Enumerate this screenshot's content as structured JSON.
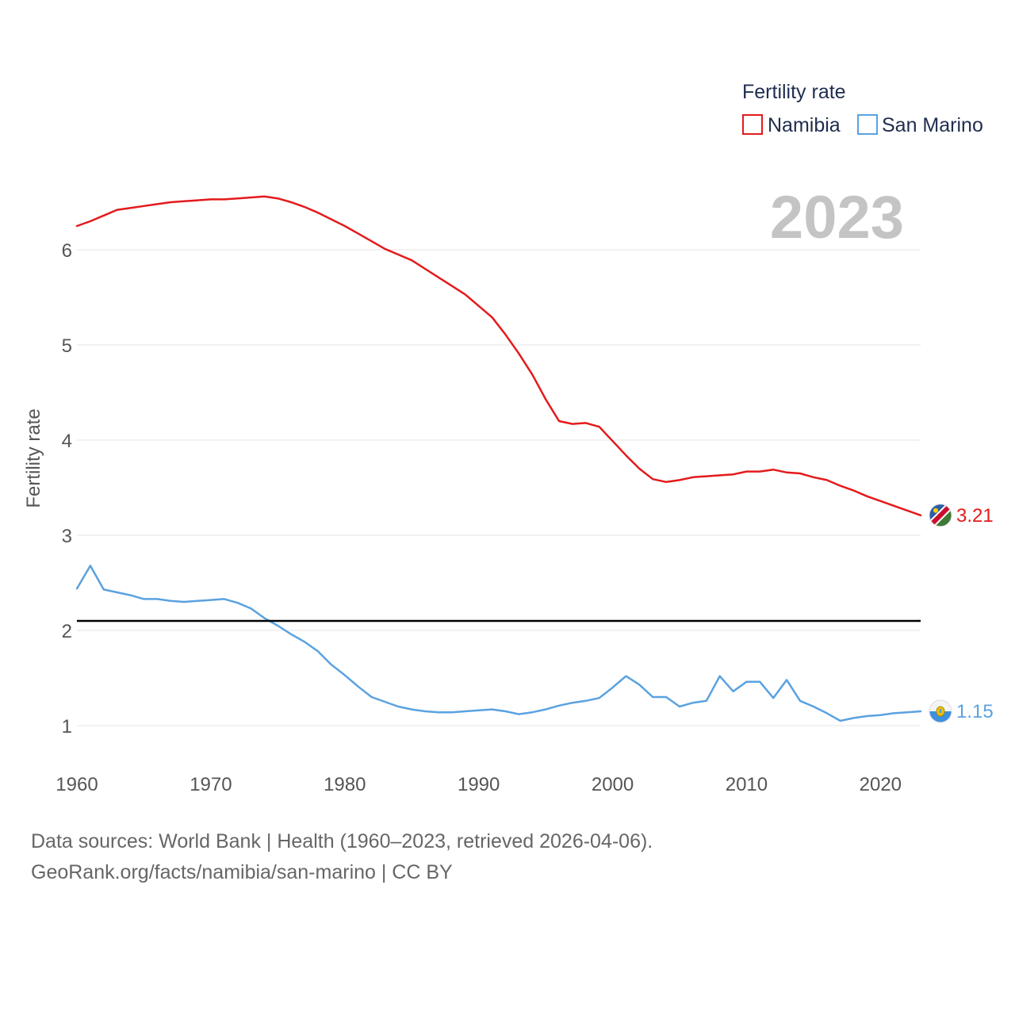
{
  "chart_data": {
    "type": "line",
    "title": "Fertility rate",
    "year_label": "2023",
    "ylabel": "Fertility rate",
    "xlabel": "",
    "xlim": [
      1960,
      2023
    ],
    "ylim": [
      0.8,
      6.9
    ],
    "x_ticks": [
      1960,
      1970,
      1980,
      1990,
      2000,
      2010,
      2020
    ],
    "x_tick_labels": [
      "1960",
      "1970",
      "1980",
      "1990",
      "2000",
      "2010",
      "2020"
    ],
    "y_ticks": [
      1,
      2,
      3,
      4,
      5,
      6
    ],
    "y_tick_labels": [
      "1",
      "2",
      "3",
      "4",
      "5",
      "6"
    ],
    "grid": true,
    "legend_position": "top-right",
    "reference_line": {
      "y": 2.1,
      "color": "#000000"
    },
    "x": [
      1960,
      1961,
      1962,
      1963,
      1964,
      1965,
      1966,
      1967,
      1968,
      1969,
      1970,
      1971,
      1972,
      1973,
      1974,
      1975,
      1976,
      1977,
      1978,
      1979,
      1980,
      1981,
      1982,
      1983,
      1984,
      1985,
      1986,
      1987,
      1988,
      1989,
      1990,
      1991,
      1992,
      1993,
      1994,
      1995,
      1996,
      1997,
      1998,
      1999,
      2000,
      2001,
      2002,
      2003,
      2004,
      2005,
      2006,
      2007,
      2008,
      2009,
      2010,
      2011,
      2012,
      2013,
      2014,
      2015,
      2016,
      2017,
      2018,
      2019,
      2020,
      2021,
      2022,
      2023
    ],
    "series": [
      {
        "name": "Namibia",
        "color": "#e41a1c",
        "end_label": "3.21",
        "flag_icon": "namibia-flag-icon",
        "values": [
          6.25,
          6.3,
          6.36,
          6.42,
          6.44,
          6.46,
          6.48,
          6.5,
          6.51,
          6.52,
          6.53,
          6.53,
          6.54,
          6.55,
          6.56,
          6.54,
          6.5,
          6.45,
          6.39,
          6.32,
          6.25,
          6.17,
          6.09,
          6.01,
          5.95,
          5.89,
          5.8,
          5.71,
          5.62,
          5.53,
          5.41,
          5.29,
          5.11,
          4.91,
          4.69,
          4.43,
          4.2,
          4.17,
          4.18,
          4.14,
          3.99,
          3.84,
          3.7,
          3.59,
          3.56,
          3.58,
          3.61,
          3.62,
          3.63,
          3.64,
          3.67,
          3.67,
          3.69,
          3.66,
          3.65,
          3.61,
          3.58,
          3.52,
          3.47,
          3.41,
          3.36,
          3.31,
          3.26,
          3.21
        ]
      },
      {
        "name": "San Marino",
        "color": "#5aa2e0",
        "end_label": "1.15",
        "flag_icon": "san-marino-flag-icon",
        "values": [
          2.44,
          2.68,
          2.43,
          2.4,
          2.37,
          2.33,
          2.33,
          2.31,
          2.3,
          2.31,
          2.32,
          2.33,
          2.29,
          2.23,
          2.13,
          2.05,
          1.96,
          1.88,
          1.78,
          1.64,
          1.53,
          1.41,
          1.3,
          1.25,
          1.2,
          1.17,
          1.15,
          1.14,
          1.14,
          1.15,
          1.16,
          1.17,
          1.15,
          1.12,
          1.14,
          1.17,
          1.21,
          1.24,
          1.26,
          1.29,
          1.4,
          1.52,
          1.43,
          1.3,
          1.3,
          1.2,
          1.24,
          1.26,
          1.52,
          1.36,
          1.46,
          1.46,
          1.29,
          1.48,
          1.26,
          1.2,
          1.13,
          1.05,
          1.08,
          1.1,
          1.11,
          1.13,
          1.14,
          1.15
        ]
      }
    ]
  },
  "legend": {
    "title": "Fertility rate",
    "items": [
      "Namibia",
      "San Marino"
    ]
  },
  "source": {
    "line1": "Data sources: World Bank | Health (1960–2023, retrieved 2026-04-06).",
    "line2": "GeoRank.org/facts/namibia/san-marino | CC BY"
  }
}
